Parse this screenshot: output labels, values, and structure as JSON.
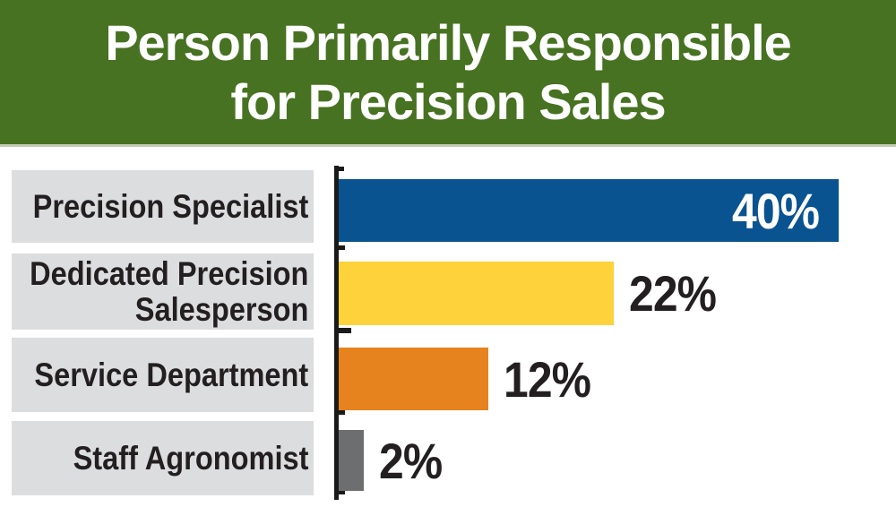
{
  "header": {
    "title_line1": "Person Primarily Responsible",
    "title_line2": "for Precision Sales",
    "bg_color": "#477221",
    "text_color": "#ffffff"
  },
  "chart_data": {
    "type": "bar",
    "orientation": "horizontal",
    "title": "Person Primarily Responsible for Precision Sales",
    "categories": [
      "Precision Specialist",
      "Dedicated Precision Salesperson",
      "Service Department",
      "Staff Agronomist"
    ],
    "categories_lines": [
      [
        "Precision Specialist"
      ],
      [
        "Dedicated Precision",
        "Salesperson"
      ],
      [
        "Service Department"
      ],
      [
        "Staff Agronomist"
      ]
    ],
    "values": [
      40,
      22,
      12,
      2
    ],
    "value_labels": [
      "40%",
      "22%",
      "12%",
      "2%"
    ],
    "bar_colors": [
      "#095390",
      "#fdd23a",
      "#e6831e",
      "#6d6e70"
    ],
    "value_label_colors": [
      "#ffffff",
      "#231f20",
      "#231f20",
      "#231f20"
    ],
    "value_label_placement": [
      "inside-end",
      "outside-end",
      "outside-end",
      "outside-end"
    ],
    "xlim": [
      0,
      40
    ],
    "unit": "percent",
    "legend": "none",
    "grid": "off",
    "axis_color": "#1a1a1a",
    "label_box_color": "#dcddde"
  }
}
